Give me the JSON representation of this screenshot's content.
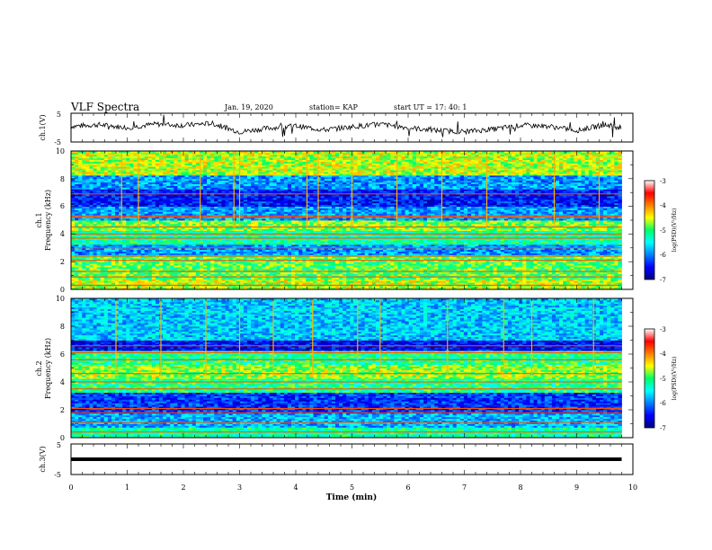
{
  "header": {
    "title": "VLF Spectra",
    "date": "Jan. 19, 2020",
    "station": "station= KAP",
    "start": "start  UT =   17: 40: 1"
  },
  "chart_data": [
    {
      "type": "line",
      "panel": "ch1-waveform",
      "ylabel": "ch.1(V)",
      "ylim": [
        -5,
        5
      ],
      "yticks": [
        "5",
        "-5"
      ],
      "x": [
        0,
        0.5,
        1.0,
        1.5,
        2.0,
        2.5,
        3.0,
        3.5,
        4.0,
        4.5,
        5.0,
        5.5,
        6.0,
        6.5,
        7.0,
        7.5,
        8.0,
        8.5,
        9.0,
        9.5,
        9.8
      ],
      "y": [
        0.5,
        1.0,
        0.0,
        1.2,
        0.8,
        1.5,
        -1.5,
        -0.2,
        0.6,
        -0.8,
        0.3,
        1.2,
        0.0,
        -1.0,
        -1.4,
        -0.6,
        0.8,
        0.5,
        -1.0,
        1.0,
        0.0
      ],
      "xlim": [
        0,
        10
      ]
    },
    {
      "type": "heatmap",
      "panel": "ch1-spectrogram",
      "ylabel_top": "ch.1",
      "ylabel": "Frequency (kHz)",
      "ylim": [
        0,
        10
      ],
      "yticks": [
        "0",
        "2",
        "4",
        "6",
        "8",
        "10"
      ],
      "xlim": [
        0,
        10
      ],
      "z_label": "log(PSD)(V²/Hz)",
      "zlim": [
        -7,
        -3
      ],
      "zticks": [
        "-3",
        "-4",
        "-5",
        "-6",
        "-7"
      ],
      "bands": [
        {
          "from": 0,
          "to": 0.8,
          "level": -4.6
        },
        {
          "from": 0.8,
          "to": 2.5,
          "level": -4.9
        },
        {
          "from": 2.5,
          "to": 3.3,
          "level": -5.9
        },
        {
          "from": 3.3,
          "to": 4.2,
          "level": -5.2
        },
        {
          "from": 4.2,
          "to": 5.0,
          "level": -4.8
        },
        {
          "from": 5.0,
          "to": 6.0,
          "level": -5.9
        },
        {
          "from": 6.0,
          "to": 7.3,
          "level": -6.4
        },
        {
          "from": 7.3,
          "to": 8.3,
          "level": -5.9
        },
        {
          "from": 8.3,
          "to": 10,
          "level": -4.6
        }
      ],
      "lines_khz": [
        0.3,
        0.9,
        1.3,
        2.1,
        2.4,
        3.0,
        3.7,
        4.0,
        4.5,
        5.2,
        5.3,
        6.9
      ],
      "spikes_min": [
        0.9,
        1.2,
        2.3,
        2.9,
        3.0,
        4.2,
        4.4,
        5.0,
        5.8,
        6.6,
        7.4,
        8.6,
        9.4
      ]
    },
    {
      "type": "heatmap",
      "panel": "ch2-spectrogram",
      "ylabel_top": "ch.2",
      "ylabel": "Frequency (kHz)",
      "ylim": [
        0,
        10
      ],
      "yticks": [
        "0",
        "2",
        "4",
        "6",
        "8",
        "10"
      ],
      "xlim": [
        0,
        10
      ],
      "z_label": "log(PSD)(V²/Hz)",
      "zlim": [
        -7,
        -3
      ],
      "zticks": [
        "-3",
        "-4",
        "-5",
        "-6",
        "-7"
      ],
      "bands": [
        {
          "from": 0,
          "to": 0.8,
          "level": -5.2
        },
        {
          "from": 0.8,
          "to": 1.8,
          "level": -5.8
        },
        {
          "from": 1.8,
          "to": 3.3,
          "level": -6.3
        },
        {
          "from": 3.3,
          "to": 4.2,
          "level": -5.1
        },
        {
          "from": 4.2,
          "to": 5.3,
          "level": -4.7
        },
        {
          "from": 5.3,
          "to": 6.3,
          "level": -5.1
        },
        {
          "from": 6.3,
          "to": 7.0,
          "level": -6.5
        },
        {
          "from": 7.0,
          "to": 10,
          "level": -5.7
        }
      ],
      "lines_khz": [
        0.4,
        1.1,
        1.8,
        2.1,
        3.5,
        4.0,
        4.6,
        5.6,
        6.1,
        6.6
      ],
      "spikes_min": [
        0.8,
        1.6,
        2.4,
        3.0,
        3.6,
        4.3,
        5.1,
        5.5,
        6.7,
        7.7,
        8.2,
        9.3
      ]
    },
    {
      "type": "line",
      "panel": "ch3-waveform",
      "ylabel": "ch.3(V)",
      "ylim": [
        -5,
        5
      ],
      "yticks": [
        "5",
        "-5"
      ],
      "x": [
        0,
        9.8
      ],
      "y": [
        0,
        0
      ],
      "xlim": [
        0,
        10
      ],
      "xlabel": "Time (min)",
      "xticks": [
        "0",
        "1",
        "2",
        "3",
        "4",
        "5",
        "6",
        "7",
        "8",
        "9",
        "10"
      ]
    }
  ]
}
